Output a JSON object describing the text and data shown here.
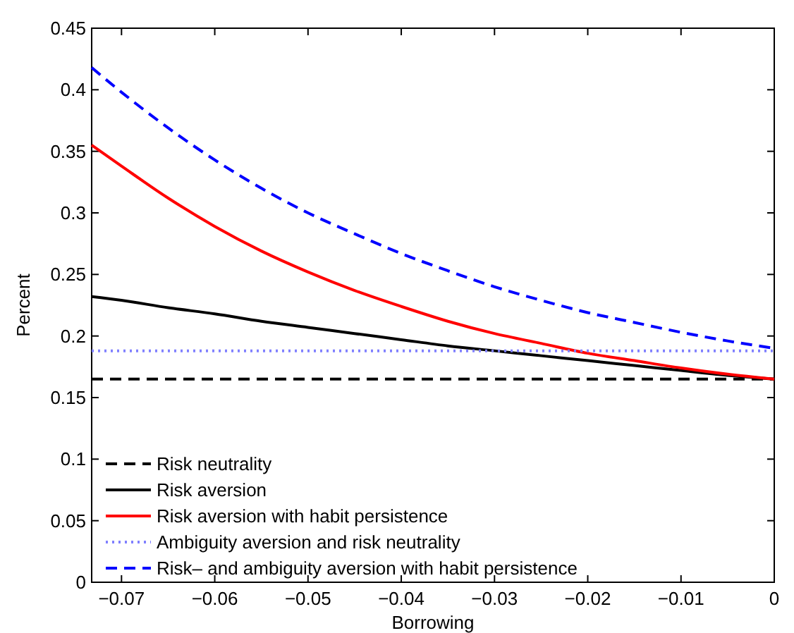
{
  "chart_data": {
    "type": "line",
    "xlabel": "Borrowing",
    "ylabel": "Percent",
    "x": [
      -0.0732,
      -0.07,
      -0.065,
      -0.06,
      -0.055,
      -0.05,
      -0.045,
      -0.04,
      -0.035,
      -0.03,
      -0.025,
      -0.02,
      -0.015,
      -0.01,
      -0.005,
      0
    ],
    "series": [
      {
        "name": "Risk neutrality",
        "color": "#000000",
        "line_style": "dashed",
        "values": [
          0.165,
          0.165,
          0.165,
          0.165,
          0.165,
          0.165,
          0.165,
          0.165,
          0.165,
          0.165,
          0.165,
          0.165,
          0.165,
          0.165,
          0.165,
          0.165
        ]
      },
      {
        "name": "Risk aversion",
        "color": "#000000",
        "line_style": "solid",
        "values": [
          0.232,
          0.229,
          0.223,
          0.218,
          0.212,
          0.207,
          0.202,
          0.197,
          0.192,
          0.188,
          0.184,
          0.18,
          0.176,
          0.172,
          0.168,
          0.165
        ]
      },
      {
        "name": "Risk aversion with habit persistence",
        "color": "#ff0000",
        "line_style": "solid",
        "values": [
          0.355,
          0.338,
          0.312,
          0.289,
          0.269,
          0.252,
          0.237,
          0.224,
          0.212,
          0.202,
          0.194,
          0.186,
          0.18,
          0.174,
          0.169,
          0.165
        ]
      },
      {
        "name": "Ambiguity aversion and risk neutrality",
        "color": "#8080ff",
        "line_style": "dotted",
        "values": [
          0.188,
          0.188,
          0.188,
          0.188,
          0.188,
          0.188,
          0.188,
          0.188,
          0.188,
          0.188,
          0.188,
          0.188,
          0.188,
          0.188,
          0.188,
          0.188
        ]
      },
      {
        "name": "Risk– and ambiguity aversion with habit persistence",
        "color": "#0000ff",
        "line_style": "dashed",
        "values": [
          0.418,
          0.398,
          0.369,
          0.343,
          0.32,
          0.3,
          0.283,
          0.267,
          0.253,
          0.24,
          0.229,
          0.219,
          0.211,
          0.203,
          0.196,
          0.19
        ]
      }
    ],
    "xlim": [
      -0.0732,
      0
    ],
    "xticks": [
      {
        "value": -0.07,
        "label": "−0.07"
      },
      {
        "value": -0.06,
        "label": "−0.06"
      },
      {
        "value": -0.05,
        "label": "−0.05"
      },
      {
        "value": -0.04,
        "label": "−0.04"
      },
      {
        "value": -0.03,
        "label": "−0.03"
      },
      {
        "value": -0.02,
        "label": "−0.02"
      },
      {
        "value": -0.01,
        "label": "−0.01"
      },
      0
    ],
    "ylim": [
      0,
      0.45
    ],
    "yticks": [
      0,
      0.05,
      0.1,
      0.15,
      0.2,
      0.25,
      0.3,
      0.35,
      0.4,
      0.45
    ],
    "grid": false,
    "legend": "bottom left"
  }
}
